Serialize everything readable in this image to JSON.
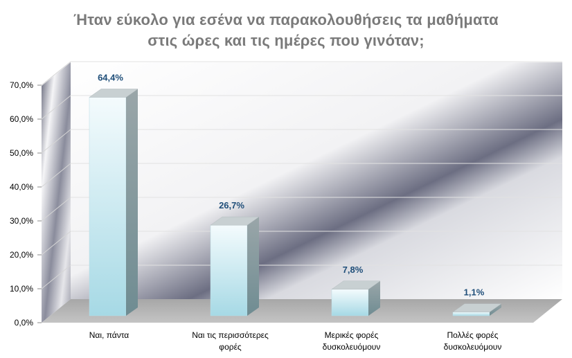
{
  "chart_data": {
    "type": "bar",
    "title_lines": [
      "Ήταν εύκολο για εσένα να παρακολουθήσεις τα μαθήματα",
      "στις ώρες και τις ημέρες που γινόταν;"
    ],
    "categories": [
      [
        "Ναι, πάντα"
      ],
      [
        "Ναι τις περισσότερες",
        "φορές"
      ],
      [
        "Μερικές φορές",
        "δυσκολευόμουν"
      ],
      [
        "Πολλές φορές",
        "δυσκολευόμουν"
      ]
    ],
    "values": [
      64.4,
      26.7,
      7.8,
      1.1
    ],
    "value_labels": [
      "64,4%",
      "26,7%",
      "7,8%",
      "1,1%"
    ],
    "yticks": [
      0,
      10,
      20,
      30,
      40,
      50,
      60,
      70
    ],
    "ytick_labels": [
      "0,0%",
      "10,0%",
      "20,0%",
      "30,0%",
      "40,0%",
      "50,0%",
      "60,0%",
      "70,0%"
    ],
    "ylim": [
      0,
      70
    ],
    "xlabel": "",
    "ylabel": "",
    "colors": {
      "title": "#7a7a7a",
      "value_label": "#1f4e79",
      "axis_text": "#000000",
      "bar_light": "#eef9fc",
      "bar_dark": "#a9dbe6",
      "bar_side": "#7f9aa0",
      "bar_top": "#c8d0d2"
    }
  }
}
